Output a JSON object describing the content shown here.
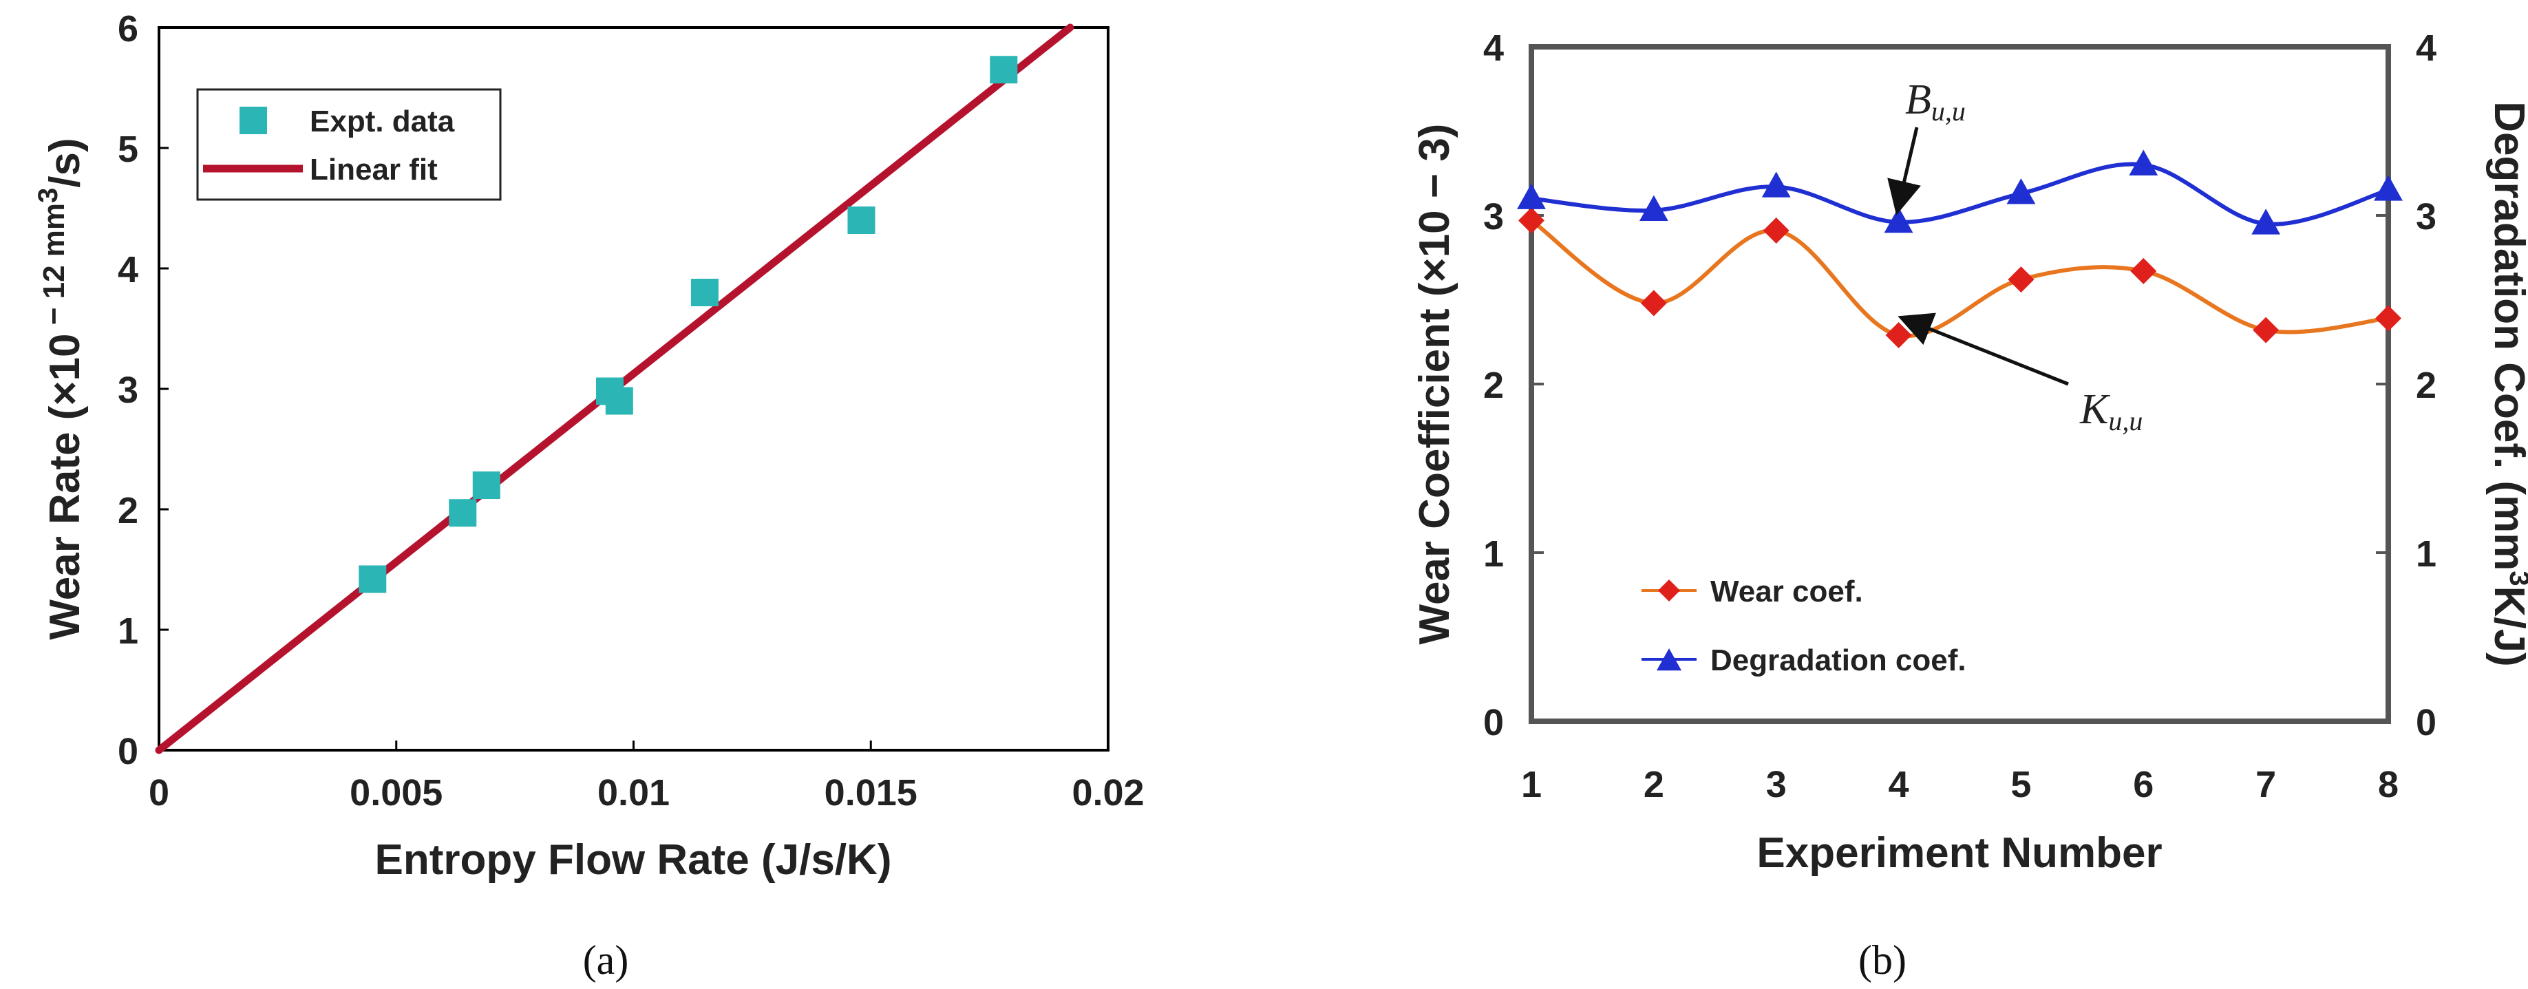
{
  "chart_data": [
    {
      "type": "scatter",
      "panel_label": "(a)",
      "title": "",
      "xlabel": "Entropy Flow Rate (J/s/K)",
      "ylabel": "Wear Rate (×10 − 12 mm3/s)",
      "ylabel_parts": {
        "pre": "Wear Rate (×10",
        "minus": " − 12 mm",
        "sup": "3",
        "post": "/s)"
      },
      "xlim": [
        0,
        0.02
      ],
      "ylim": [
        0,
        6
      ],
      "xticks": [
        0,
        0.005,
        0.01,
        0.015,
        0.02
      ],
      "xtick_labels": [
        "0",
        "0.005",
        "0.01",
        "0.015",
        "0.02"
      ],
      "yticks": [
        0,
        1,
        2,
        3,
        4,
        5,
        6
      ],
      "ytick_labels": [
        "0",
        "1",
        "2",
        "3",
        "4",
        "5",
        "6"
      ],
      "series": [
        {
          "name": "Expt. data",
          "kind": "marker",
          "color": "#2BB5B5",
          "points": [
            {
              "x": 0.0045,
              "y": 1.42
            },
            {
              "x": 0.0064,
              "y": 1.97
            },
            {
              "x": 0.0069,
              "y": 2.2
            },
            {
              "x": 0.0095,
              "y": 2.98
            },
            {
              "x": 0.0097,
              "y": 2.9
            },
            {
              "x": 0.0115,
              "y": 3.8
            },
            {
              "x": 0.0148,
              "y": 4.4
            },
            {
              "x": 0.0178,
              "y": 5.65
            }
          ]
        },
        {
          "name": "Linear fit",
          "kind": "line",
          "color": "#B5122E",
          "points": [
            {
              "x": 0,
              "y": 0
            },
            {
              "x": 0.0192,
              "y": 6
            }
          ]
        }
      ],
      "legend": {
        "position": "top-left",
        "items": [
          "Expt. data",
          "Linear fit"
        ]
      }
    },
    {
      "type": "line",
      "panel_label": "(b)",
      "title": "",
      "xlabel": "Experiment Number",
      "ylabel": "Wear Coefficient (×10 − 3)",
      "y2label": "Degradation Coef. (mm3K/J)",
      "y2label_parts": {
        "pre": "Degradation Coef. (mm",
        "sup": "3",
        "post": "K/J)"
      },
      "x": [
        1,
        2,
        3,
        4,
        5,
        6,
        7,
        8
      ],
      "xlim": [
        1,
        8
      ],
      "ylim": [
        0,
        4
      ],
      "y2lim": [
        0,
        4
      ],
      "xtick_labels": [
        "1",
        "2",
        "3",
        "4",
        "5",
        "6",
        "7",
        "8"
      ],
      "ytick_labels": [
        "0",
        "1",
        "2",
        "3",
        "4"
      ],
      "y2tick_labels": [
        "0",
        "1",
        "2",
        "3",
        "4"
      ],
      "series": [
        {
          "name": "Wear coef.",
          "marker": "diamond",
          "color": "#E8761F",
          "marker_color": "#E0201B",
          "values": [
            2.97,
            2.48,
            2.91,
            2.29,
            2.62,
            2.67,
            2.32,
            2.39
          ]
        },
        {
          "name": "Degradation coef.",
          "marker": "triangle",
          "color": "#1F2FD1",
          "marker_color": "#1F2FD1",
          "values": [
            3.1,
            3.03,
            3.17,
            2.96,
            3.13,
            3.3,
            2.95,
            3.15
          ]
        }
      ],
      "annotations": [
        {
          "main": "B",
          "sub": "u,u",
          "target": {
            "x": 4.05,
            "y": 3.0
          }
        },
        {
          "main": "K",
          "sub": "u,u",
          "target": {
            "x": 4.0,
            "y": 2.42
          }
        }
      ],
      "legend": {
        "position": "bottom-left",
        "items": [
          "Wear coef.",
          "Degradation coef."
        ]
      }
    }
  ]
}
